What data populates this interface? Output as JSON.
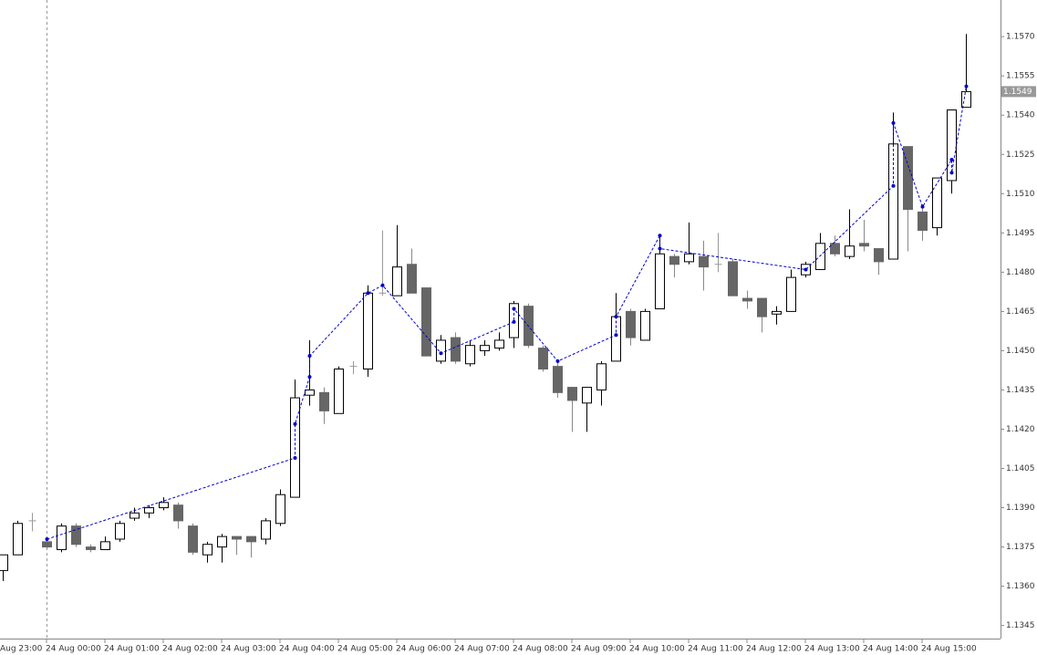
{
  "chart_data": {
    "type": "candlestick",
    "categories": [
      null,
      null,
      null,
      "24 Aug 00:00",
      null,
      null,
      null,
      "24 Aug 01:00",
      null,
      null,
      null,
      "24 Aug 02:00",
      null,
      null,
      null,
      "24 Aug 03:00",
      null,
      null,
      null,
      "24 Aug 04:00",
      null,
      null,
      null,
      "24 Aug 05:00",
      null,
      null,
      null,
      "24 Aug 06:00",
      null,
      null,
      null,
      "24 Aug 07:00",
      null,
      null,
      null,
      "24 Aug 08:00",
      null,
      null,
      null,
      "24 Aug 09:00",
      null,
      null,
      null,
      "24 Aug 10:00",
      null,
      null,
      null,
      "24 Aug 11:00",
      null,
      null,
      null,
      "24 Aug 12:00",
      null,
      null,
      null,
      "24 Aug 13:00",
      null,
      null,
      null,
      "24 Aug 14:00",
      null,
      null,
      null,
      "24 Aug 15:00",
      null,
      null,
      null
    ],
    "x_label_cut": "Aug 23:00",
    "open": [
      1.1366,
      1.1372,
      1.1385,
      1.1377,
      1.1374,
      1.1383,
      1.1375,
      1.1374,
      1.1378,
      1.1386,
      1.1388,
      1.139,
      1.1391,
      1.1383,
      1.1372,
      1.1375,
      1.1379,
      1.1379,
      1.1378,
      1.1384,
      1.1394,
      1.1433,
      1.1434,
      1.1426,
      1.1444,
      1.1443,
      1.1472,
      1.1471,
      1.1483,
      1.1474,
      1.1446,
      1.1455,
      1.1445,
      1.145,
      1.1451,
      1.1455,
      1.1467,
      1.1451,
      1.1444,
      1.1436,
      1.143,
      1.1435,
      1.1446,
      1.1465,
      1.1454,
      1.1466,
      1.1486,
      1.1484,
      1.1486,
      1.1483,
      1.1484,
      1.147,
      1.147,
      1.1464,
      1.1465,
      1.1479,
      1.1481,
      1.1491,
      1.1486,
      1.1491,
      1.1489,
      1.1485,
      1.1528,
      1.1503,
      1.1497,
      1.1515,
      1.1543
    ],
    "high": [
      1.1372,
      1.1385,
      1.1388,
      1.1379,
      1.1384,
      1.1384,
      1.1376,
      1.1379,
      1.1385,
      1.139,
      1.1391,
      1.1394,
      1.1392,
      1.1384,
      1.1377,
      1.138,
      1.1379,
      1.1379,
      1.1386,
      1.1397,
      1.1439,
      1.1454,
      1.1436,
      1.1444,
      1.1446,
      1.1475,
      1.1496,
      1.1498,
      1.1489,
      1.1474,
      1.1456,
      1.1457,
      1.1454,
      1.1454,
      1.1457,
      1.1469,
      1.1468,
      1.1452,
      1.1446,
      1.1436,
      1.1436,
      1.1446,
      1.1472,
      1.1466,
      1.1466,
      1.1494,
      1.1487,
      1.1499,
      1.1492,
      1.1495,
      1.1485,
      1.1473,
      1.147,
      1.1467,
      1.1481,
      1.1484,
      1.1495,
      1.1494,
      1.1504,
      1.15,
      1.1489,
      1.1541,
      1.1528,
      1.1506,
      1.1516,
      1.1542,
      1.1571
    ],
    "low": [
      1.1362,
      1.1372,
      1.1381,
      1.1374,
      1.1373,
      1.1375,
      1.1373,
      1.1374,
      1.1377,
      1.1385,
      1.1386,
      1.1389,
      1.1382,
      1.1372,
      1.1369,
      1.1369,
      1.1372,
      1.1371,
      1.1376,
      1.1383,
      1.1394,
      1.1429,
      1.1422,
      1.1426,
      1.1441,
      1.144,
      1.1471,
      1.1471,
      1.1472,
      1.1448,
      1.1445,
      1.1445,
      1.1444,
      1.1448,
      1.145,
      1.1451,
      1.1451,
      1.1442,
      1.1432,
      1.1419,
      1.1419,
      1.1429,
      1.1446,
      1.1452,
      1.1454,
      1.1466,
      1.1478,
      1.1483,
      1.1473,
      1.148,
      1.1471,
      1.1466,
      1.1457,
      1.146,
      1.1465,
      1.1478,
      1.1481,
      1.1486,
      1.1485,
      1.1488,
      1.1479,
      1.1485,
      1.1488,
      1.1492,
      1.1494,
      1.151,
      1.1543
    ],
    "close": [
      1.1372,
      1.1384,
      1.1385,
      1.1375,
      1.1383,
      1.1376,
      1.1374,
      1.1377,
      1.1384,
      1.1388,
      1.139,
      1.1392,
      1.1385,
      1.1373,
      1.1376,
      1.1379,
      1.1378,
      1.1377,
      1.1385,
      1.1395,
      1.1432,
      1.1435,
      1.1427,
      1.1443,
      1.1444,
      1.1472,
      1.1472,
      1.1482,
      1.1472,
      1.1448,
      1.1454,
      1.1446,
      1.1452,
      1.1452,
      1.1454,
      1.1468,
      1.1452,
      1.1443,
      1.1434,
      1.1431,
      1.1436,
      1.1445,
      1.1463,
      1.1455,
      1.1465,
      1.1487,
      1.1483,
      1.1487,
      1.1482,
      1.1483,
      1.1471,
      1.1469,
      1.1463,
      1.1465,
      1.1478,
      1.1483,
      1.1491,
      1.1487,
      1.149,
      1.149,
      1.1484,
      1.1529,
      1.1504,
      1.1496,
      1.1516,
      1.1542,
      1.1549
    ],
    "up_color": "#ffffff",
    "down_color": "#666666",
    "doji_color": "#999999",
    "overlay": {
      "type": "line",
      "color": "#0000cc",
      "x": [
        3,
        20,
        20,
        21,
        21,
        25,
        26,
        30,
        35,
        35,
        38,
        42,
        42,
        45,
        45,
        55,
        61,
        61,
        63,
        65,
        65,
        66
      ],
      "values": [
        1.1378,
        1.1409,
        1.1422,
        1.144,
        1.1448,
        1.1472,
        1.1475,
        1.1449,
        1.1461,
        1.1466,
        1.1446,
        1.1456,
        1.1463,
        1.1494,
        1.1489,
        1.1481,
        1.1513,
        1.1537,
        1.1505,
        1.1523,
        1.1518,
        1.1551
      ]
    },
    "last_price": 1.1549,
    "ylim": [
      1.134,
      1.1584
    ],
    "yticks": [
      {
        "value": 1.157,
        "label": "1.1570"
      },
      1.1555,
      {
        "value": 1.154,
        "label": "1.1540"
      },
      1.1525,
      {
        "value": 1.151,
        "label": "1.1510"
      },
      1.1495,
      {
        "value": 1.148,
        "label": "1.1480"
      },
      1.1465,
      {
        "value": 1.145,
        "label": "1.1450"
      },
      1.1435,
      {
        "value": 1.142,
        "label": "1.1420"
      },
      1.1405,
      {
        "value": 1.139,
        "label": "1.1390"
      },
      1.1375,
      {
        "value": 1.136,
        "label": "1.1360"
      },
      1.1345
    ]
  }
}
